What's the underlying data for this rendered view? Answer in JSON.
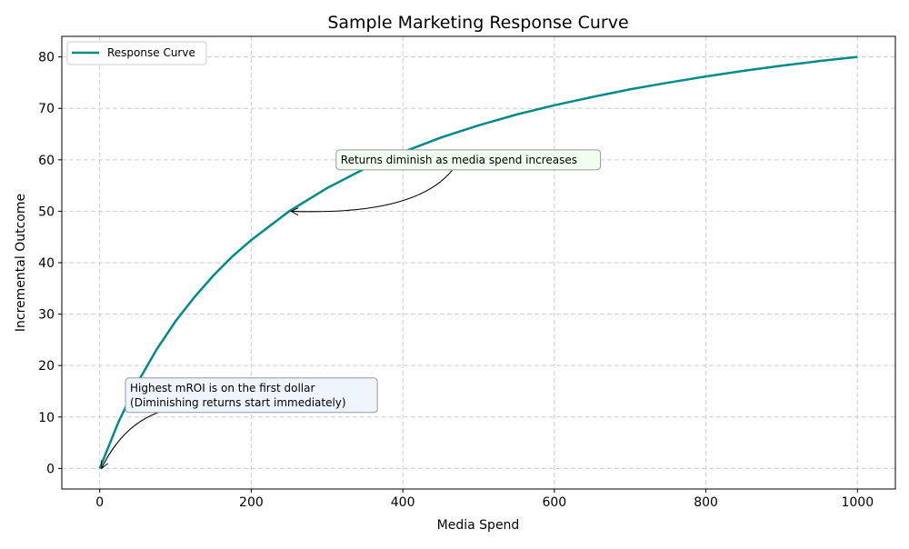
{
  "chart_data": {
    "type": "line",
    "title": "Sample Marketing Response Curve",
    "xlabel": "Media Spend",
    "ylabel": "Incremental Outcome",
    "xlim": [
      -50,
      1050
    ],
    "ylim": [
      -4,
      84
    ],
    "xticks": [
      0,
      200,
      400,
      600,
      800,
      1000
    ],
    "yticks": [
      0,
      10,
      20,
      30,
      40,
      50,
      60,
      70,
      80
    ],
    "grid": true,
    "grid_style": "dashed",
    "legend": "top-left",
    "series": [
      {
        "name": "Response Curve",
        "color": "#008b8b",
        "x": [
          0,
          25,
          50,
          75,
          100,
          125,
          150,
          175,
          200,
          250,
          300,
          350,
          400,
          450,
          500,
          550,
          600,
          650,
          700,
          750,
          800,
          850,
          900,
          950,
          1000
        ],
        "y": [
          0,
          9.1,
          16.7,
          23.1,
          28.6,
          33.3,
          37.5,
          41.2,
          44.4,
          50,
          54.5,
          58.3,
          61.5,
          64.3,
          66.7,
          68.8,
          70.6,
          72.2,
          73.7,
          75,
          76.2,
          77.3,
          78.3,
          79.2,
          80
        ]
      }
    ],
    "annotations": [
      {
        "lines": [
          "Highest mROI is on the first dollar",
          "(Diminishing returns start immediately)"
        ],
        "xy": [
          0,
          0
        ],
        "text_xy": [
          40,
          13
        ],
        "box_color": "#eef5fd"
      },
      {
        "lines": [
          "Returns diminish as media spend increases"
        ],
        "xy": [
          250,
          50
        ],
        "text_xy": [
          318,
          60
        ],
        "box_color": "#f0fff0"
      }
    ]
  }
}
